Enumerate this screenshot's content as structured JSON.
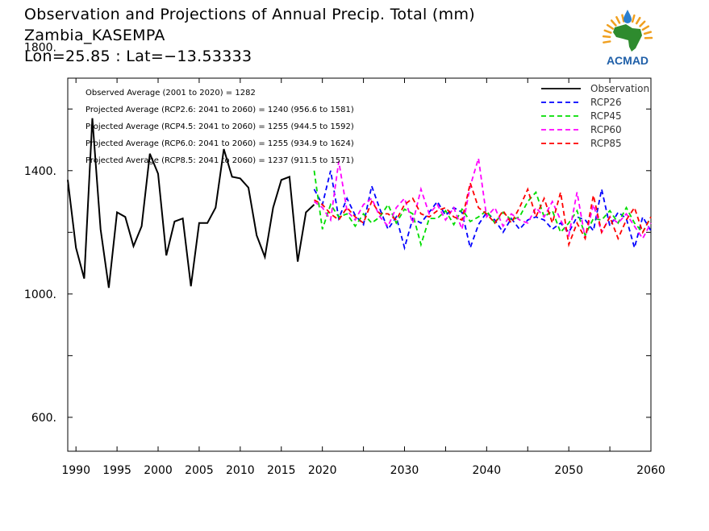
{
  "titles": {
    "line1": "Observation and Projections of Annual Precip. Total (mm)",
    "line2": "Zambia_KASEMPA",
    "line3": "Lon=25.85 : Lat=−13.53333"
  },
  "logo": {
    "text": "ACMAD",
    "icon": "acmad-africa-logo-icon",
    "colors": {
      "africa": "#2e8b2e",
      "text": "#1f5fa8",
      "rays": "#f0a020",
      "drop": "#2a7fd0"
    }
  },
  "annotations": [
    "Observed Average (2001 to 2020) = 1282",
    "Projected Average (RCP2.6: 2041 to 2060) = 1240 (956.6 to 1581)",
    "Projected Average (RCP4.5: 2041 to 2060) = 1255 (944.5 to 1592)",
    "Projected Average (RCP6.0: 2041 to 2060) = 1255 (934.9 to 1624)",
    "Projected Average (RCP8.5: 2041 to 2060) = 1237 (911.5 to 1571)"
  ],
  "chart_data": {
    "type": "line",
    "title": "Observation and Projections of Annual Precip. Total (mm)",
    "xlabel": "",
    "ylabel": "",
    "xlim": [
      1989,
      2060
    ],
    "ylim": [
      490,
      1700
    ],
    "grid": false,
    "legend_position": "top-right",
    "x_ticks": [
      "1990",
      "1995",
      "2000",
      "2005",
      "2010",
      "2015",
      "2020",
      "2030",
      "2040",
      "2050",
      "2060"
    ],
    "y_ticks": [
      "600.",
      "1000.",
      "1400.",
      "1800."
    ],
    "series": [
      {
        "name": "Observation",
        "color": "#000000",
        "dashed": false,
        "x": [
          1989,
          1990,
          1991,
          1992,
          1993,
          1994,
          1995,
          1996,
          1997,
          1998,
          1999,
          2000,
          2001,
          2002,
          2003,
          2004,
          2005,
          2006,
          2007,
          2008,
          2009,
          2010,
          2011,
          2012,
          2013,
          2014,
          2015,
          2016,
          2017,
          2018,
          2019
        ],
        "values": [
          1370,
          1150,
          1050,
          1570,
          1210,
          1020,
          1265,
          1250,
          1155,
          1220,
          1455,
          1390,
          1125,
          1235,
          1245,
          1025,
          1230,
          1230,
          1280,
          1470,
          1380,
          1375,
          1345,
          1190,
          1120,
          1280,
          1370,
          1380,
          1105,
          1265,
          1290
        ]
      },
      {
        "name": "RCP26",
        "color": "#0000ff",
        "dashed": true,
        "x": [
          2019,
          2020,
          2021,
          2022,
          2023,
          2024,
          2025,
          2026,
          2027,
          2028,
          2029,
          2030,
          2031,
          2032,
          2033,
          2034,
          2035,
          2036,
          2037,
          2038,
          2039,
          2040,
          2041,
          2042,
          2043,
          2044,
          2045,
          2046,
          2047,
          2048,
          2049,
          2050,
          2051,
          2052,
          2053,
          2054,
          2055,
          2056,
          2057,
          2058,
          2059,
          2060
        ],
        "values": [
          1340,
          1290,
          1400,
          1245,
          1310,
          1255,
          1225,
          1350,
          1275,
          1210,
          1250,
          1150,
          1245,
          1230,
          1265,
          1300,
          1255,
          1280,
          1265,
          1150,
          1225,
          1265,
          1240,
          1200,
          1245,
          1210,
          1240,
          1250,
          1240,
          1210,
          1230,
          1200,
          1250,
          1240,
          1205,
          1340,
          1220,
          1265,
          1245,
          1150,
          1250,
          1205
        ]
      },
      {
        "name": "RCP45",
        "color": "#00dd00",
        "dashed": true,
        "x": [
          2019,
          2020,
          2021,
          2022,
          2023,
          2024,
          2025,
          2026,
          2027,
          2028,
          2029,
          2030,
          2031,
          2032,
          2033,
          2034,
          2035,
          2036,
          2037,
          2038,
          2039,
          2040,
          2041,
          2042,
          2043,
          2044,
          2045,
          2046,
          2047,
          2048,
          2049,
          2050,
          2051,
          2052,
          2053,
          2054,
          2055,
          2056,
          2057,
          2058,
          2059,
          2060
        ],
        "values": [
          1400,
          1210,
          1290,
          1250,
          1260,
          1220,
          1260,
          1230,
          1250,
          1290,
          1230,
          1275,
          1260,
          1160,
          1245,
          1245,
          1270,
          1225,
          1275,
          1235,
          1250,
          1270,
          1230,
          1265,
          1240,
          1250,
          1300,
          1330,
          1250,
          1270,
          1200,
          1230,
          1270,
          1190,
          1245,
          1240,
          1270,
          1230,
          1280,
          1230,
          1200,
          1250
        ]
      },
      {
        "name": "RCP60",
        "color": "#ff00ff",
        "dashed": true,
        "x": [
          2019,
          2020,
          2021,
          2022,
          2023,
          2024,
          2025,
          2026,
          2027,
          2028,
          2029,
          2030,
          2031,
          2032,
          2033,
          2034,
          2035,
          2036,
          2037,
          2038,
          2039,
          2040,
          2041,
          2042,
          2043,
          2044,
          2045,
          2046,
          2047,
          2048,
          2049,
          2050,
          2051,
          2052,
          2053,
          2054,
          2055,
          2056,
          2057,
          2058,
          2059,
          2060
        ],
        "values": [
          1300,
          1280,
          1240,
          1430,
          1270,
          1240,
          1290,
          1310,
          1250,
          1220,
          1280,
          1310,
          1230,
          1340,
          1260,
          1290,
          1240,
          1280,
          1210,
          1350,
          1440,
          1250,
          1280,
          1220,
          1260,
          1240,
          1230,
          1280,
          1250,
          1300,
          1240,
          1190,
          1330,
          1180,
          1290,
          1200,
          1250,
          1230,
          1260,
          1220,
          1180,
          1230
        ]
      },
      {
        "name": "RCP85",
        "color": "#ff0000",
        "dashed": true,
        "x": [
          2019,
          2020,
          2021,
          2022,
          2023,
          2024,
          2025,
          2026,
          2027,
          2028,
          2029,
          2030,
          2031,
          2032,
          2033,
          2034,
          2035,
          2036,
          2037,
          2038,
          2039,
          2040,
          2041,
          2042,
          2043,
          2044,
          2045,
          2046,
          2047,
          2048,
          2049,
          2050,
          2051,
          2052,
          2053,
          2054,
          2055,
          2056,
          2057,
          2058,
          2059,
          2060
        ],
        "values": [
          1305,
          1290,
          1260,
          1240,
          1280,
          1250,
          1230,
          1300,
          1260,
          1260,
          1240,
          1290,
          1310,
          1260,
          1250,
          1270,
          1280,
          1250,
          1240,
          1360,
          1280,
          1260,
          1230,
          1270,
          1230,
          1280,
          1340,
          1250,
          1310,
          1230,
          1330,
          1160,
          1230,
          1180,
          1320,
          1200,
          1250,
          1180,
          1240,
          1280,
          1200,
          1250
        ]
      }
    ]
  }
}
